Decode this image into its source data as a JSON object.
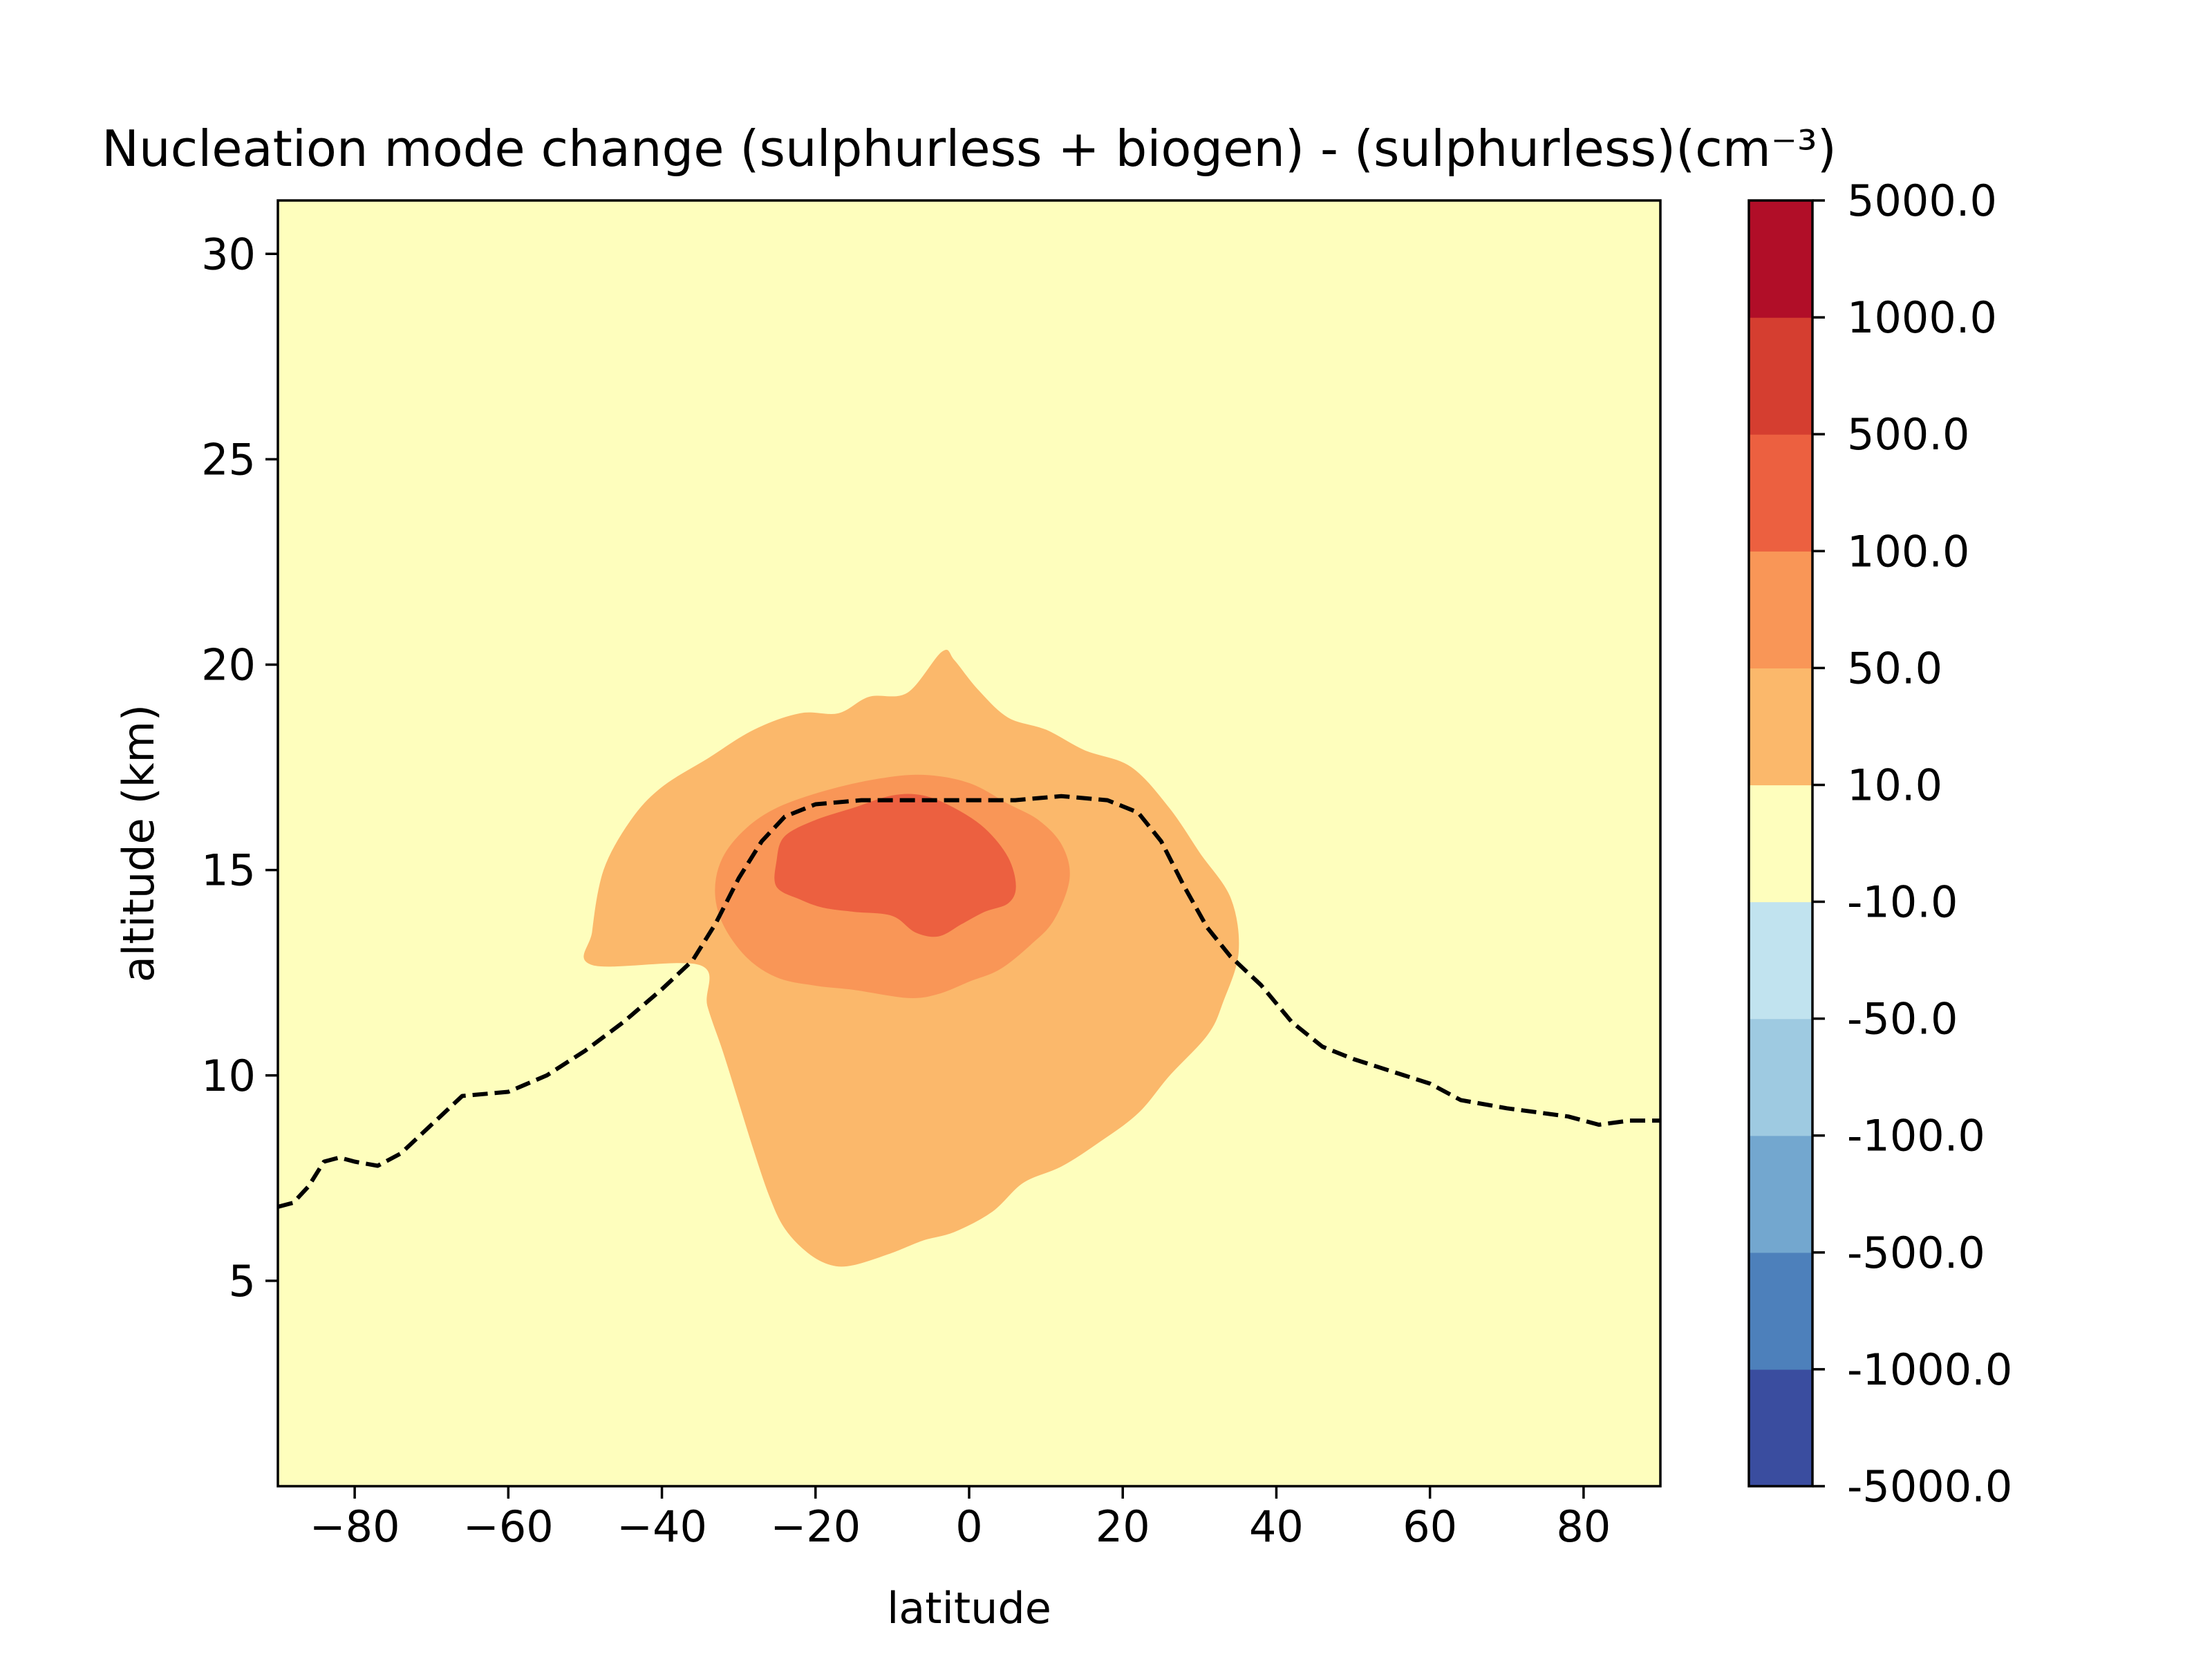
{
  "chart_data": {
    "type": "contourf",
    "title": "Nucleation mode change (sulphurless + biogen) - (sulphurless)(cm⁻³)",
    "xlabel": "latitude",
    "ylabel": "altitude (km)",
    "xlim": [
      -90,
      90
    ],
    "ylim": [
      0,
      31.3
    ],
    "xticks": [
      -80,
      -60,
      -40,
      -20,
      0,
      20,
      40,
      60,
      80
    ],
    "xtick_labels": [
      "−80",
      "−60",
      "−40",
      "−20",
      "0",
      "20",
      "40",
      "60",
      "80"
    ],
    "yticks": [
      5,
      10,
      15,
      20,
      25,
      30
    ],
    "ytick_labels": [
      "5",
      "10",
      "15",
      "20",
      "25",
      "30"
    ],
    "background_color": "#fefebd",
    "colorbar": {
      "levels": [
        -5000,
        -1000,
        -500,
        -100,
        -50,
        -10,
        10,
        50,
        100,
        500,
        1000,
        5000
      ],
      "level_labels": [
        "-5000.0",
        "-1000.0",
        "-500.0",
        "-100.0",
        "-50.0",
        "-10.0",
        "10.0",
        "50.0",
        "100.0",
        "500.0",
        "1000.0",
        "5000.0"
      ],
      "colors": [
        "#3a4d9f",
        "#4d80bb",
        "#73a7cf",
        "#9ecae1",
        "#c1e3ef",
        "#fefebd",
        "#fbb86b",
        "#f99657",
        "#ec6040",
        "#d53e30",
        "#b10e28"
      ]
    },
    "regions": [
      {
        "range": "10.0 to 50.0",
        "color": "#fbb86b",
        "outline": [
          [
            -35,
            12.7
          ],
          [
            -49,
            12.7
          ],
          [
            -49,
            13.5
          ],
          [
            -47.5,
            15
          ],
          [
            -44,
            16.2
          ],
          [
            -40,
            17
          ],
          [
            -34,
            17.7
          ],
          [
            -28,
            18.4
          ],
          [
            -22,
            18.8
          ],
          [
            -17,
            18.8
          ],
          [
            -13,
            19.2
          ],
          [
            -8,
            19.3
          ],
          [
            -3.5,
            20.3
          ],
          [
            -2,
            20.1
          ],
          [
            1,
            19.4
          ],
          [
            5,
            18.7
          ],
          [
            10,
            18.4
          ],
          [
            15,
            17.9
          ],
          [
            21,
            17.5
          ],
          [
            26,
            16.5
          ],
          [
            30,
            15.4
          ],
          [
            34,
            14.3
          ],
          [
            35,
            13
          ],
          [
            33,
            11.8
          ],
          [
            31,
            11
          ],
          [
            26,
            10
          ],
          [
            22,
            9.1
          ],
          [
            17,
            8.4
          ],
          [
            12,
            7.8
          ],
          [
            7,
            7.4
          ],
          [
            3,
            6.7
          ],
          [
            -2,
            6.2
          ],
          [
            -6,
            6
          ],
          [
            -10,
            5.7
          ],
          [
            -15,
            5.4
          ],
          [
            -18,
            5.4
          ],
          [
            -21,
            5.7
          ],
          [
            -24,
            6.3
          ],
          [
            -26,
            7.1
          ],
          [
            -28,
            8.2
          ],
          [
            -30,
            9.4
          ],
          [
            -32,
            10.6
          ],
          [
            -34,
            11.7
          ]
        ]
      },
      {
        "range": "50.0 to 100.0",
        "color": "#f99657",
        "outline": [
          [
            -33,
            14.5
          ],
          [
            -32,
            15.3
          ],
          [
            -29,
            16
          ],
          [
            -25,
            16.5
          ],
          [
            -19,
            16.9
          ],
          [
            -12,
            17.2
          ],
          [
            -6,
            17.3
          ],
          [
            0,
            17.1
          ],
          [
            5,
            16.6
          ],
          [
            9,
            16.2
          ],
          [
            12,
            15.6
          ],
          [
            13,
            14.8
          ],
          [
            11,
            13.8
          ],
          [
            8,
            13.2
          ],
          [
            4,
            12.6
          ],
          [
            0,
            12.3
          ],
          [
            -4,
            12
          ],
          [
            -8,
            11.9
          ],
          [
            -15,
            12.1
          ],
          [
            -20,
            12.2
          ],
          [
            -25,
            12.4
          ],
          [
            -29,
            12.9
          ],
          [
            -32,
            13.7
          ]
        ]
      },
      {
        "range": "100.0 to 500.0",
        "color": "#ec6040",
        "outline": [
          [
            -25,
            15.2
          ],
          [
            -24,
            15.8
          ],
          [
            -20,
            16.2
          ],
          [
            -15,
            16.5
          ],
          [
            -10,
            16.8
          ],
          [
            -6,
            16.8
          ],
          [
            -2,
            16.5
          ],
          [
            2,
            16
          ],
          [
            5,
            15.3
          ],
          [
            6,
            14.6
          ],
          [
            5,
            14.2
          ],
          [
            2,
            14
          ],
          [
            -1,
            13.7
          ],
          [
            -4,
            13.4
          ],
          [
            -7,
            13.5
          ],
          [
            -10,
            13.9
          ],
          [
            -15,
            14
          ],
          [
            -19,
            14.1
          ],
          [
            -22,
            14.3
          ],
          [
            -25,
            14.6
          ]
        ]
      }
    ],
    "tropopause_line": {
      "style": "dashed",
      "color": "#000000",
      "points": [
        [
          -90,
          6.8
        ],
        [
          -88,
          6.9
        ],
        [
          -86,
          7.3
        ],
        [
          -84,
          7.9
        ],
        [
          -82,
          8
        ],
        [
          -80,
          7.9
        ],
        [
          -77,
          7.8
        ],
        [
          -74,
          8.1
        ],
        [
          -70,
          8.8
        ],
        [
          -66,
          9.5
        ],
        [
          -60,
          9.6
        ],
        [
          -55,
          10
        ],
        [
          -50,
          10.6
        ],
        [
          -45,
          11.3
        ],
        [
          -40,
          12.1
        ],
        [
          -36,
          12.8
        ],
        [
          -33,
          13.7
        ],
        [
          -30,
          14.8
        ],
        [
          -27,
          15.7
        ],
        [
          -24,
          16.3
        ],
        [
          -20,
          16.6
        ],
        [
          -14,
          16.7
        ],
        [
          -6,
          16.7
        ],
        [
          0,
          16.7
        ],
        [
          6,
          16.7
        ],
        [
          12,
          16.8
        ],
        [
          18,
          16.7
        ],
        [
          22,
          16.4
        ],
        [
          25,
          15.7
        ],
        [
          28,
          14.6
        ],
        [
          31,
          13.6
        ],
        [
          34,
          12.9
        ],
        [
          38,
          12.2
        ],
        [
          42,
          11.3
        ],
        [
          46,
          10.7
        ],
        [
          50,
          10.4
        ],
        [
          55,
          10.1
        ],
        [
          60,
          9.8
        ],
        [
          64,
          9.4
        ],
        [
          70,
          9.2
        ],
        [
          74,
          9.1
        ],
        [
          78,
          9
        ],
        [
          82,
          8.8
        ],
        [
          86,
          8.9
        ],
        [
          90,
          8.9
        ]
      ]
    }
  }
}
